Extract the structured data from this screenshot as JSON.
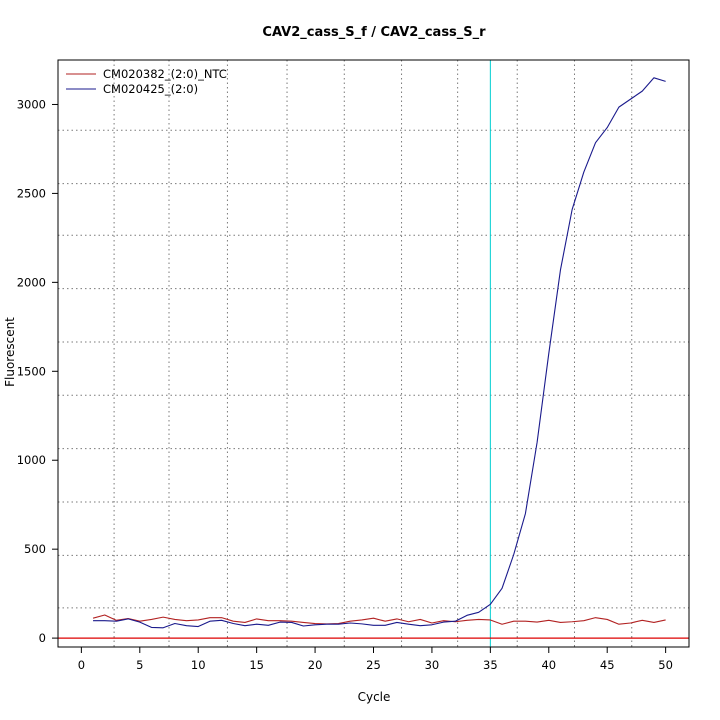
{
  "chart_data": {
    "type": "line",
    "title": "CAV2_cass_S_f / CAV2_cass_S_r",
    "xlabel": "Cycle",
    "ylabel": "Fluorescent",
    "xlim": [
      -2,
      52
    ],
    "ylim": [
      -50,
      3250
    ],
    "xticks": [
      0,
      5,
      10,
      15,
      20,
      25,
      30,
      35,
      40,
      45,
      50
    ],
    "xtick_labels": [
      "0",
      "5",
      "10",
      "15",
      "20",
      "25",
      "30",
      "35",
      "40",
      "45",
      "50"
    ],
    "yticks": [
      0,
      500,
      1000,
      1500,
      2000,
      2500,
      3000
    ],
    "ytick_labels": [
      "0",
      "500",
      "1000",
      "1500",
      "2000",
      "2500",
      "3000"
    ],
    "grid": true,
    "grid_x": [
      2.8,
      7.5,
      12.5,
      17.6,
      22.5,
      27.4,
      32.2,
      37.3,
      42.2,
      47.1
    ],
    "grid_y": [
      170,
      465,
      765,
      1065,
      1365,
      1665,
      1965,
      2265,
      2555,
      2855
    ],
    "legend_position": "top-left",
    "threshold": {
      "x": 35,
      "color": "#00ced1"
    },
    "baseline": {
      "y": 0,
      "color": "#dd0000"
    },
    "x": [
      1,
      2,
      3,
      4,
      5,
      6,
      7,
      8,
      9,
      10,
      11,
      12,
      13,
      14,
      15,
      16,
      17,
      18,
      19,
      20,
      21,
      22,
      23,
      24,
      25,
      26,
      27,
      28,
      29,
      30,
      31,
      32,
      33,
      34,
      35,
      36,
      37,
      38,
      39,
      40,
      41,
      42,
      43,
      44,
      45,
      46,
      47,
      48,
      49,
      50
    ],
    "series": [
      {
        "name": "CM020382_(2:0)_NTC",
        "color": "#b22222",
        "values": [
          112,
          130,
          100,
          110,
          95,
          105,
          118,
          105,
          98,
          102,
          115,
          115,
          95,
          88,
          108,
          98,
          98,
          95,
          88,
          82,
          80,
          82,
          95,
          102,
          112,
          95,
          108,
          92,
          105,
          85,
          98,
          92,
          100,
          105,
          102,
          78,
          95,
          95,
          90,
          100,
          88,
          92,
          98,
          115,
          105,
          78,
          85,
          100,
          88,
          102
        ]
      },
      {
        "name": "CM020425_(2:0)",
        "color": "#1a1a8c",
        "values": [
          98,
          98,
          95,
          108,
          90,
          60,
          58,
          82,
          70,
          65,
          95,
          100,
          82,
          70,
          78,
          72,
          90,
          88,
          68,
          75,
          78,
          78,
          85,
          80,
          72,
          72,
          88,
          78,
          70,
          75,
          90,
          95,
          128,
          145,
          190,
          280,
          470,
          700,
          1100,
          1600,
          2070,
          2410,
          2620,
          2785,
          2870,
          2985,
          3030,
          3075,
          3150,
          3130
        ]
      }
    ]
  }
}
